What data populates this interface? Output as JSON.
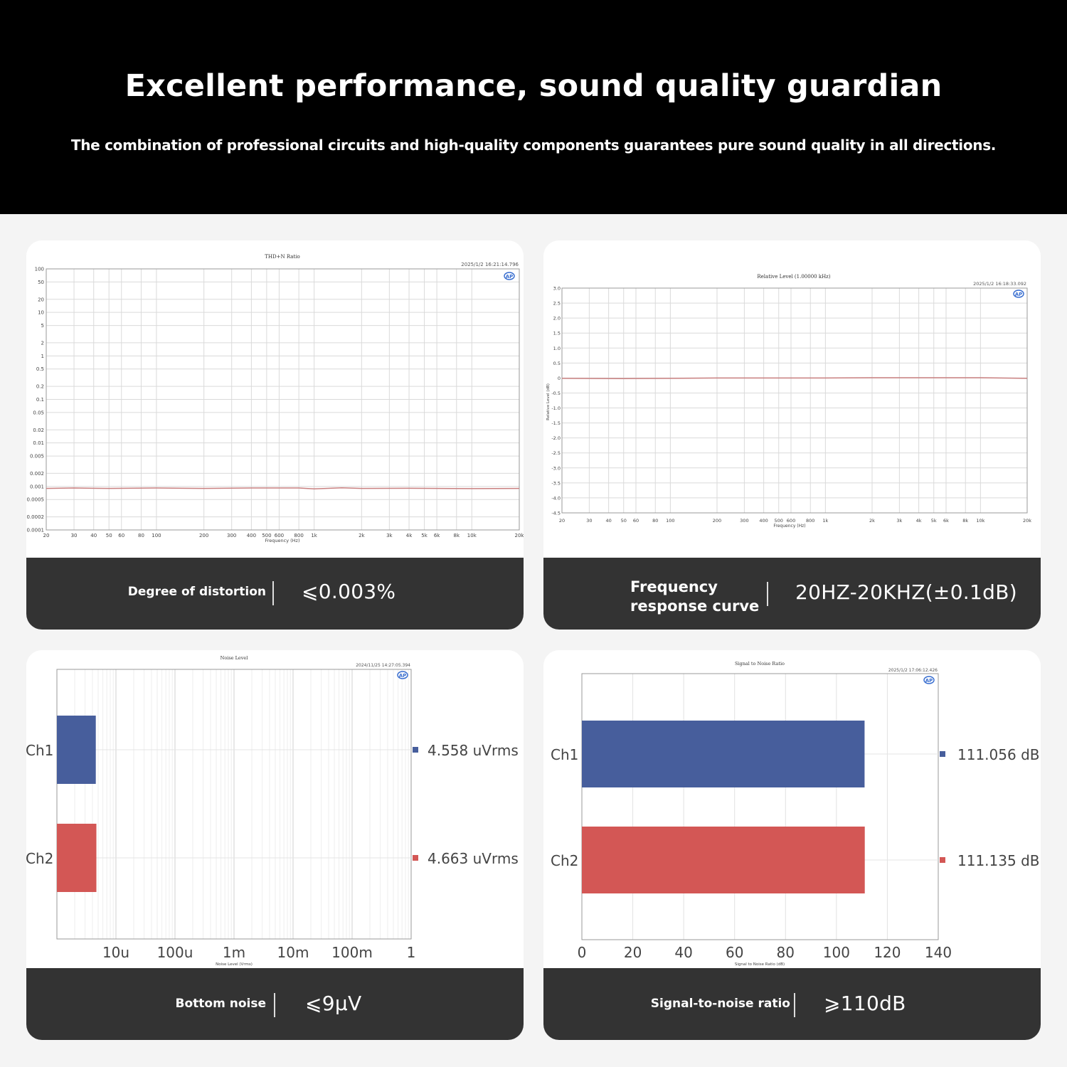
{
  "header": {
    "title": "Excellent performance, sound quality guardian",
    "subtitle": "The combination of professional circuits and high-quality components guarantees pure sound quality in all directions."
  },
  "colors": {
    "ch1": "#475e9c",
    "ch2": "#d35755",
    "curve": "#c98080",
    "caption_bg": "#333333"
  },
  "cards": [
    {
      "label": "Degree of distortion",
      "value": "⩽0.003%",
      "logo_icon": "ap-logo-icon"
    },
    {
      "label": "Frequency response curve",
      "label_lines": [
        "Frequency",
        "response curve"
      ],
      "value": "20HZ-20KHZ(±0.1dB)",
      "logo_icon": "ap-logo-icon"
    },
    {
      "label": "Bottom noise",
      "value": "⩽9μV",
      "logo_icon": "ap-logo-icon"
    },
    {
      "label": "Signal-to-noise ratio",
      "value": "⩾110dB",
      "logo_icon": "ap-logo-icon"
    }
  ],
  "chart_data": [
    {
      "type": "line",
      "title": "THD+N Ratio",
      "timestamp": "2025/1/2 16:21:14.796",
      "xlabel": "Frequency (Hz)",
      "xscale": "log",
      "yscale": "log",
      "xlim": [
        20,
        20000
      ],
      "ylim": [
        0.0001,
        100
      ],
      "x_ticks": [
        "20",
        "30",
        "40",
        "50",
        "60",
        "80",
        "100",
        "200",
        "300",
        "400",
        "500",
        "600",
        "800",
        "1k",
        "2k",
        "3k",
        "4k",
        "5k",
        "6k",
        "8k",
        "10k",
        "20k"
      ],
      "x_tick_values": [
        20,
        30,
        40,
        50,
        60,
        80,
        100,
        200,
        300,
        400,
        500,
        600,
        800,
        1000,
        2000,
        3000,
        4000,
        5000,
        6000,
        8000,
        10000,
        20000
      ],
      "y_ticks": [
        "100",
        "50",
        "20",
        "10",
        "5",
        "2",
        "1",
        "0.5",
        "0.2",
        "0.1",
        "0.05",
        "0.02",
        "0.01",
        "0.005",
        "0.002",
        "0.001",
        "0.0005",
        "0.0002",
        "0.0001"
      ],
      "y_tick_values": [
        100,
        50,
        20,
        10,
        5,
        2,
        1,
        0.5,
        0.2,
        0.1,
        0.05,
        0.02,
        0.01,
        0.005,
        0.002,
        0.001,
        0.0005,
        0.0002,
        0.0001
      ],
      "series": [
        {
          "x": [
            20,
            30,
            50,
            100,
            200,
            400,
            800,
            1000,
            1500,
            2000,
            4000,
            10000,
            20000
          ],
          "values": [
            0.0009,
            0.00092,
            0.0009,
            0.00092,
            0.0009,
            0.00092,
            0.00092,
            0.00088,
            0.00093,
            0.0009,
            0.00091,
            0.00089,
            0.0009
          ]
        }
      ],
      "grid": true
    },
    {
      "type": "line",
      "title": "Relative Level (1.00000 kHz)",
      "timestamp": "2025/1/2 16:18:33.092",
      "xlabel": "Frequency (Hz)",
      "ylabel": "Relative Level (dB)",
      "xscale": "log",
      "xlim": [
        20,
        20000
      ],
      "ylim": [
        -4.5,
        3.0
      ],
      "x_ticks": [
        "20",
        "30",
        "40",
        "50",
        "60",
        "80",
        "100",
        "200",
        "300",
        "400",
        "500",
        "600",
        "800",
        "1k",
        "2k",
        "3k",
        "4k",
        "5k",
        "6k",
        "8k",
        "10k",
        "20k"
      ],
      "x_tick_values": [
        20,
        30,
        40,
        50,
        60,
        80,
        100,
        200,
        300,
        400,
        500,
        600,
        800,
        1000,
        2000,
        3000,
        4000,
        5000,
        6000,
        8000,
        10000,
        20000
      ],
      "y_ticks": [
        "3.0",
        "2.5",
        "2.0",
        "1.5",
        "1.0",
        "0.5",
        "0",
        "-0.5",
        "-1.0",
        "-1.5",
        "-2.0",
        "-2.5",
        "-3.0",
        "-3.5",
        "-4.0",
        "-4.5"
      ],
      "y_tick_values": [
        3.0,
        2.5,
        2.0,
        1.5,
        1.0,
        0.5,
        0,
        -0.5,
        -1.0,
        -1.5,
        -2.0,
        -2.5,
        -3.0,
        -3.5,
        -4.0,
        -4.5
      ],
      "series": [
        {
          "x": [
            20,
            50,
            100,
            200,
            500,
            1000,
            2000,
            5000,
            10000,
            20000
          ],
          "values": [
            -0.01,
            -0.02,
            -0.01,
            0,
            0,
            0,
            0.01,
            0.01,
            0.01,
            -0.01
          ]
        }
      ],
      "grid": true
    },
    {
      "type": "bar",
      "orientation": "horizontal",
      "title": "Noise Level",
      "timestamp": "2024/11/25 14:27:05.394",
      "xlabel": "Noise Level (Vrms)",
      "xscale": "log",
      "xlim": [
        1e-06,
        1
      ],
      "x_ticks": [
        "10u",
        "100u",
        "1m",
        "10m",
        "100m",
        "1"
      ],
      "x_tick_values": [
        1e-05,
        0.0001,
        0.001,
        0.01,
        0.1,
        1
      ],
      "categories": [
        "Ch1",
        "Ch2"
      ],
      "values": [
        4.558e-06,
        4.663e-06
      ],
      "data_labels": [
        "4.558  uVrms",
        "4.663  uVrms"
      ]
    },
    {
      "type": "bar",
      "orientation": "horizontal",
      "title": "Signal to Noise Ratio",
      "timestamp": "2025/1/2 17:06:12.426",
      "xlabel": "Signal to Noise Ratio (dB)",
      "xlim": [
        0,
        140
      ],
      "x_ticks": [
        "0",
        "20",
        "40",
        "60",
        "80",
        "100",
        "120",
        "140"
      ],
      "x_tick_values": [
        0,
        20,
        40,
        60,
        80,
        100,
        120,
        140
      ],
      "categories": [
        "Ch1",
        "Ch2"
      ],
      "values": [
        111.056,
        111.135
      ],
      "data_labels": [
        "111.056  dB",
        "111.135  dB"
      ]
    }
  ]
}
